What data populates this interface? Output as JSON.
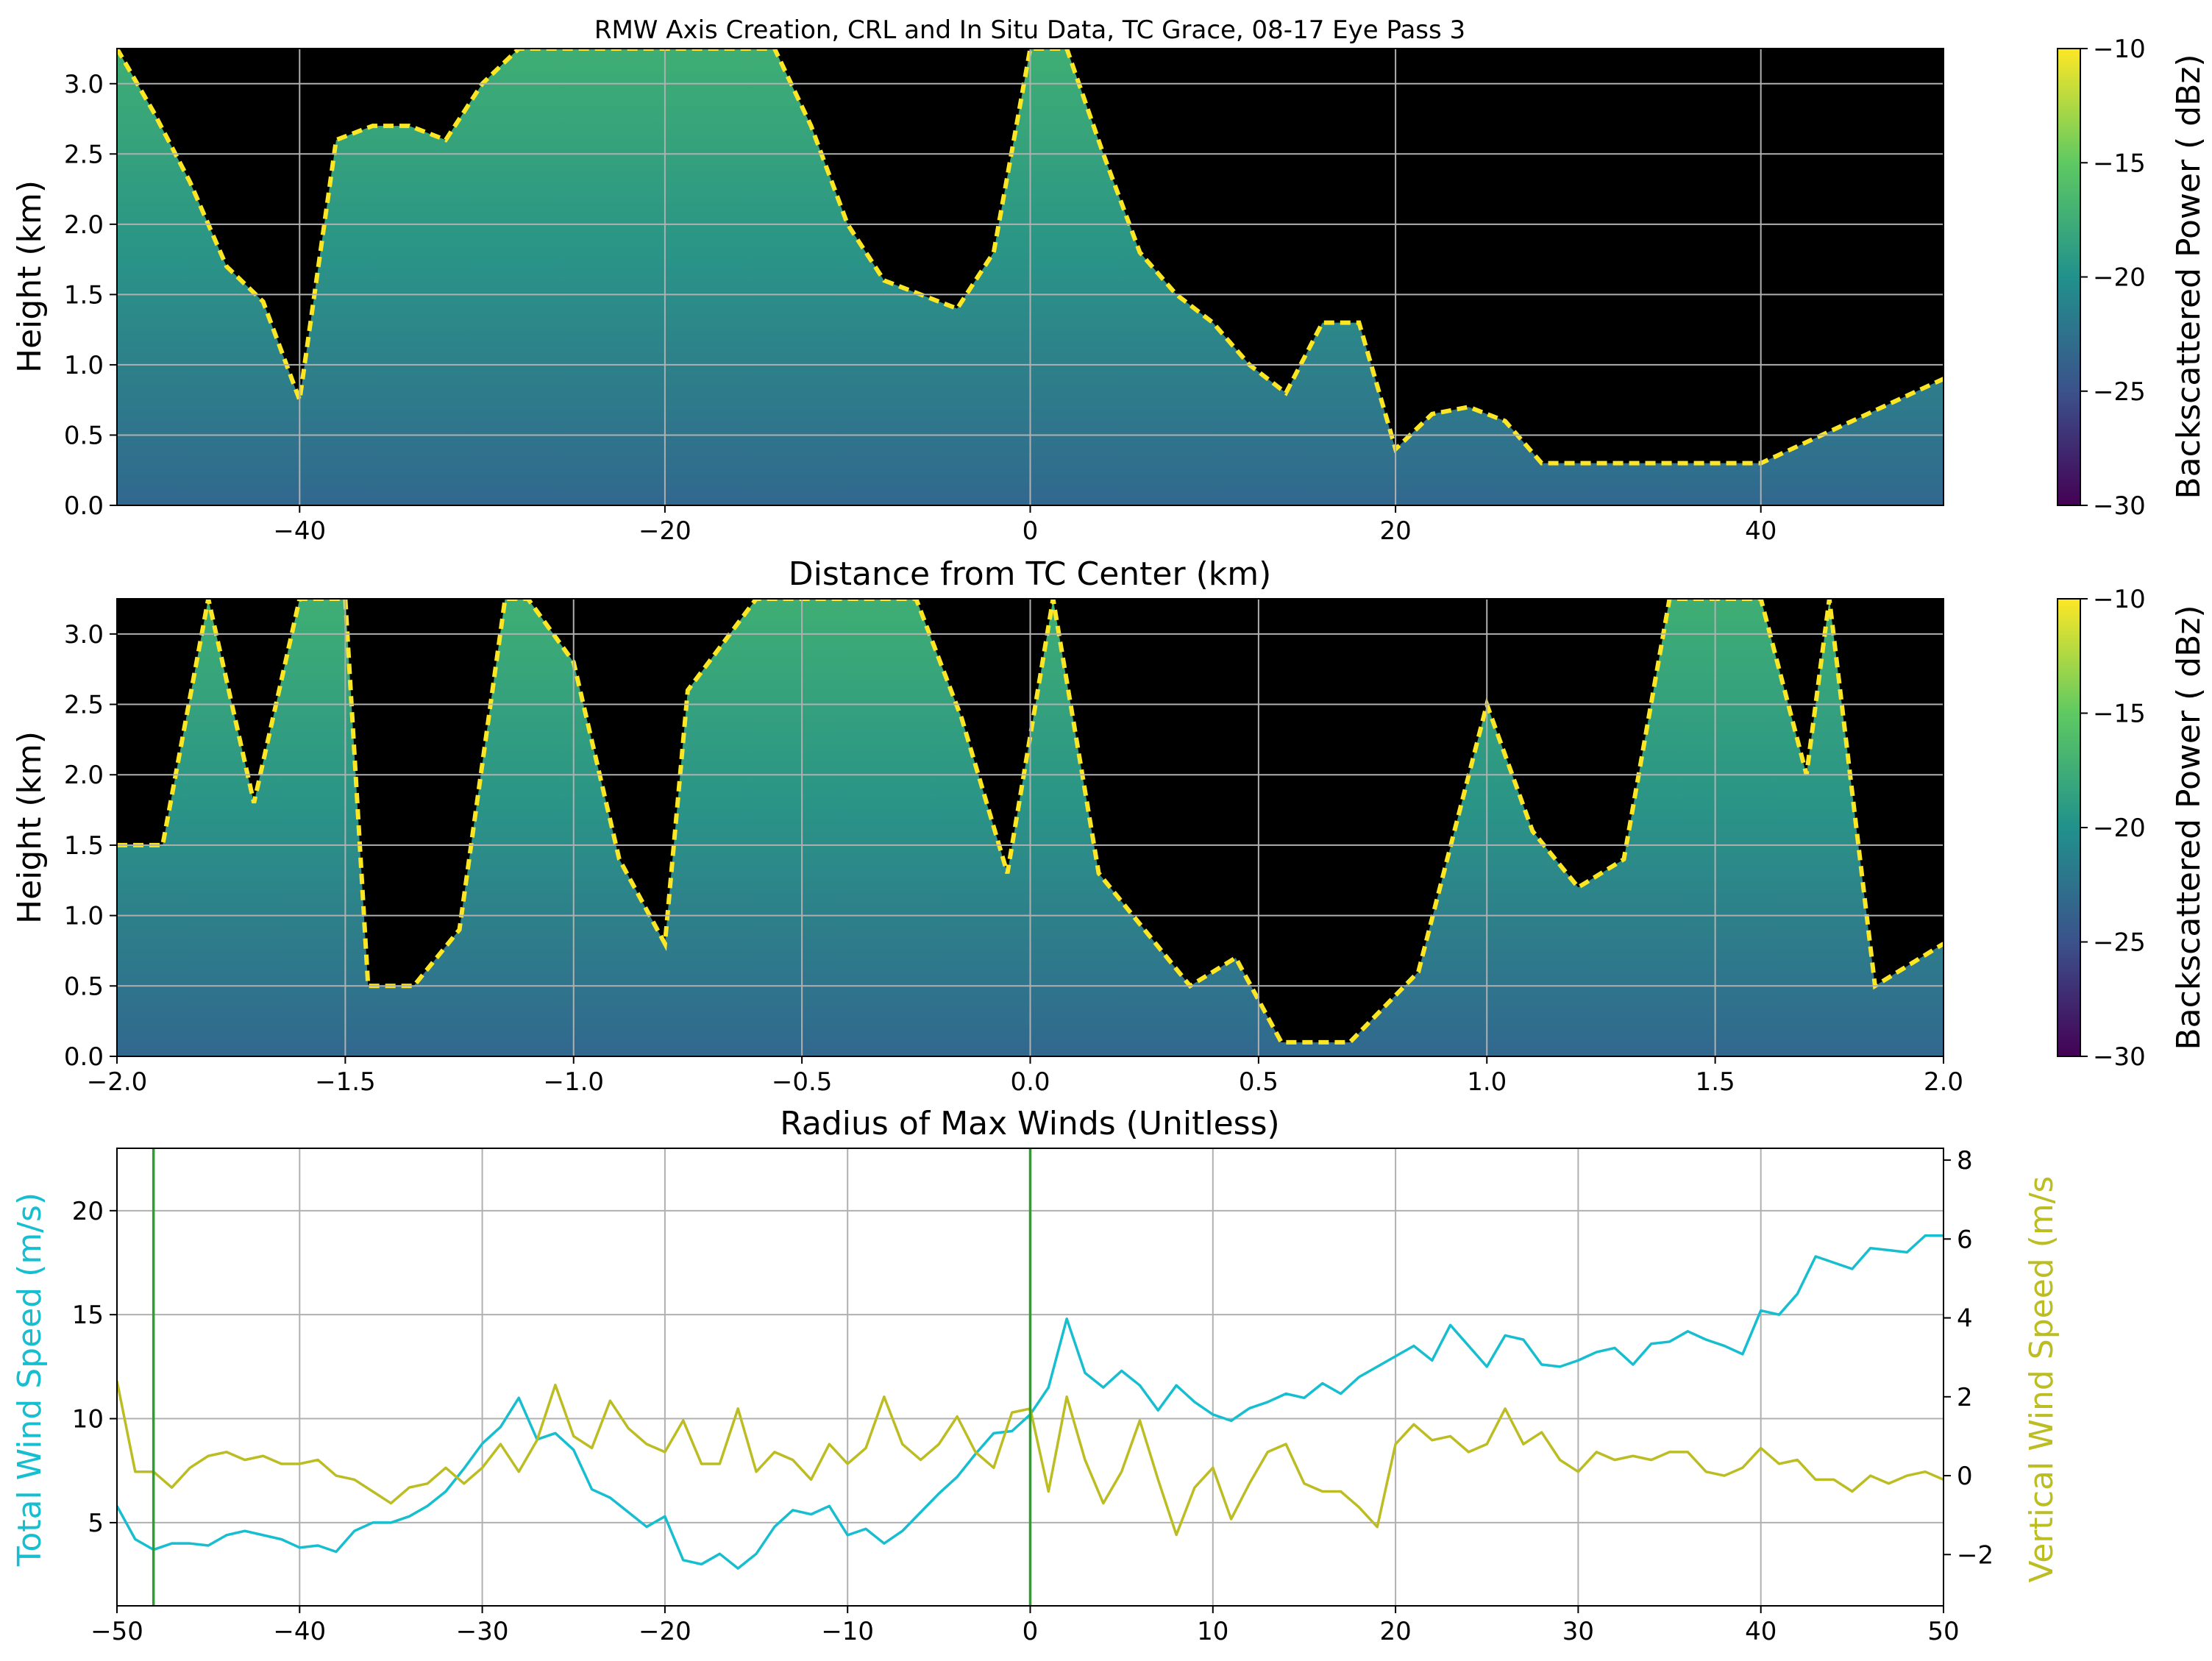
{
  "figure": {
    "title": "RMW Axis Creation, CRL and In Situ Data, TC Grace, 08-17 Eye Pass 3"
  },
  "colors": {
    "total_wind": "#17becf",
    "vertical_wind": "#bcbd22",
    "center_lines": "#2ca02c",
    "no_signal": "#000000",
    "grid": "#b0b0b0",
    "colormap": [
      "#440154",
      "#3b528b",
      "#21918c",
      "#5ec962",
      "#fde725"
    ]
  },
  "chart_data": [
    {
      "type": "heatmap",
      "panel": "top",
      "xlabel": "Distance from TC Center (km)",
      "ylabel": "Height (km)",
      "xlim": [
        -50,
        50
      ],
      "ylim": [
        0,
        3.25
      ],
      "xticks": [
        -40,
        -20,
        0,
        20,
        40
      ],
      "yticks": [
        0.0,
        0.5,
        1.0,
        1.5,
        2.0,
        2.5,
        3.0
      ],
      "grid": true,
      "colorbar": {
        "label": "Backscattered Power ( dBz)",
        "range": [
          -30,
          -10
        ],
        "ticks": [
          -30,
          -25,
          -20,
          -15,
          -10
        ]
      },
      "cloud_top_profile": {
        "x": [
          -50,
          -48,
          -46,
          -44,
          -42,
          -40,
          -38,
          -36,
          -34,
          -32,
          -30,
          -28,
          -26,
          -24,
          -22,
          -20,
          -18,
          -16,
          -14,
          -12,
          -10,
          -8,
          -6,
          -4,
          -2,
          0,
          2,
          4,
          6,
          8,
          10,
          12,
          14,
          16,
          18,
          20,
          22,
          24,
          26,
          28,
          30,
          35,
          40,
          45,
          50
        ],
        "height_km": [
          3.25,
          2.8,
          2.3,
          1.7,
          1.45,
          0.75,
          2.6,
          2.7,
          2.7,
          2.6,
          3.0,
          3.25,
          3.25,
          3.25,
          3.25,
          3.25,
          3.25,
          3.25,
          3.25,
          2.7,
          2.0,
          1.6,
          1.5,
          1.4,
          1.8,
          3.25,
          3.25,
          2.5,
          1.8,
          1.5,
          1.3,
          1.0,
          0.8,
          1.3,
          1.3,
          0.4,
          0.65,
          0.7,
          0.6,
          0.3,
          0.3,
          0.3,
          0.3,
          0.6,
          0.9
        ]
      }
    },
    {
      "type": "heatmap",
      "panel": "middle",
      "xlabel": "Radius of Max Winds (Unitless)",
      "ylabel": "Height (km)",
      "xlim": [
        -2.0,
        2.0
      ],
      "ylim": [
        0,
        3.25
      ],
      "xticks": [
        -2.0,
        -1.5,
        -1.0,
        -0.5,
        0.0,
        0.5,
        1.0,
        1.5,
        2.0
      ],
      "yticks": [
        0.0,
        0.5,
        1.0,
        1.5,
        2.0,
        2.5,
        3.0
      ],
      "grid": true,
      "colorbar": {
        "label": "Backscattered Power ( dBz)",
        "range": [
          -30,
          -10
        ],
        "ticks": [
          -30,
          -25,
          -20,
          -15,
          -10
        ]
      },
      "cloud_top_profile": {
        "x": [
          -2.0,
          -1.9,
          -1.8,
          -1.7,
          -1.6,
          -1.5,
          -1.45,
          -1.35,
          -1.25,
          -1.15,
          -1.1,
          -1.0,
          -0.9,
          -0.8,
          -0.75,
          -0.6,
          -0.4,
          -0.25,
          -0.15,
          -0.05,
          0.05,
          0.15,
          0.25,
          0.35,
          0.45,
          0.55,
          0.7,
          0.85,
          1.0,
          1.1,
          1.2,
          1.3,
          1.4,
          1.5,
          1.6,
          1.7,
          1.75,
          1.85,
          2.0
        ],
        "height_km": [
          1.5,
          1.5,
          3.25,
          1.8,
          3.25,
          3.25,
          0.5,
          0.5,
          0.9,
          3.25,
          3.25,
          2.8,
          1.4,
          0.8,
          2.6,
          3.25,
          3.25,
          3.25,
          2.4,
          1.3,
          3.25,
          1.3,
          0.9,
          0.5,
          0.7,
          0.1,
          0.1,
          0.6,
          2.5,
          1.6,
          1.2,
          1.4,
          3.25,
          3.25,
          3.25,
          2.0,
          3.25,
          0.5,
          0.8
        ]
      }
    },
    {
      "type": "line",
      "panel": "bottom",
      "x": [
        -50,
        -49,
        -48,
        -47,
        -46,
        -45,
        -44,
        -43,
        -42,
        -41,
        -40,
        -39,
        -38,
        -37,
        -36,
        -35,
        -34,
        -33,
        -32,
        -31,
        -30,
        -29,
        -28,
        -27,
        -26,
        -25,
        -24,
        -23,
        -22,
        -21,
        -20,
        -19,
        -18,
        -17,
        -16,
        -15,
        -14,
        -13,
        -12,
        -11,
        -10,
        -9,
        -8,
        -7,
        -6,
        -5,
        -4,
        -3,
        -2,
        -1,
        0,
        1,
        2,
        3,
        4,
        5,
        6,
        7,
        8,
        9,
        10,
        11,
        12,
        13,
        14,
        15,
        16,
        17,
        18,
        19,
        20,
        21,
        22,
        23,
        24,
        25,
        26,
        27,
        28,
        29,
        30,
        31,
        32,
        33,
        34,
        35,
        36,
        37,
        38,
        39,
        40,
        41,
        42,
        43,
        44,
        45,
        46,
        47,
        48,
        49,
        50
      ],
      "xlim": [
        -50,
        50
      ],
      "xticks": [
        -50,
        -40,
        -30,
        -20,
        -10,
        0,
        10,
        20,
        30,
        40,
        50
      ],
      "grid": true,
      "vlines_x": [
        -48,
        0
      ],
      "y_left": {
        "label": "Total Wind Speed (m/s)",
        "lim": [
          1.0,
          23.0
        ],
        "ticks": [
          5,
          10,
          15,
          20
        ]
      },
      "y_right": {
        "label": "Vertical Wind Speed (m/s",
        "lim": [
          -3.3,
          8.3
        ],
        "ticks": [
          -2,
          0,
          2,
          4,
          6,
          8
        ]
      },
      "series": [
        {
          "axis": "left",
          "values": [
            5.8,
            4.2,
            3.7,
            4.0,
            4.0,
            3.9,
            4.4,
            4.6,
            4.4,
            4.2,
            3.8,
            3.9,
            3.6,
            4.6,
            5.0,
            5.0,
            5.3,
            5.8,
            6.5,
            7.6,
            8.8,
            9.6,
            11.0,
            9.0,
            9.3,
            8.5,
            6.6,
            6.2,
            5.5,
            4.8,
            5.3,
            3.2,
            3.0,
            3.5,
            2.8,
            3.5,
            4.8,
            5.6,
            5.4,
            5.8,
            4.4,
            4.7,
            4.0,
            4.6,
            5.5,
            6.4,
            7.2,
            8.3,
            9.3,
            9.4,
            10.2,
            11.5,
            14.8,
            12.2,
            11.5,
            12.3,
            11.6,
            10.4,
            11.6,
            10.8,
            10.2,
            9.9,
            10.5,
            10.8,
            11.2,
            11.0,
            11.7,
            11.2,
            12.0,
            12.5,
            13.0,
            13.5,
            12.8,
            14.5,
            13.5,
            12.5,
            14.0,
            13.8,
            12.6,
            12.5,
            12.8,
            13.2,
            13.4,
            12.6,
            13.6,
            13.7,
            14.2,
            13.8,
            13.5,
            13.1,
            15.2,
            15.0,
            16.0,
            17.8,
            17.5,
            17.2,
            18.2,
            18.1,
            18.0,
            18.8,
            18.8
          ]
        },
        {
          "axis": "right",
          "values": [
            2.4,
            0.1,
            0.1,
            -0.3,
            0.2,
            0.5,
            0.6,
            0.4,
            0.5,
            0.3,
            0.3,
            0.4,
            0.0,
            -0.1,
            -0.4,
            -0.7,
            -0.3,
            -0.2,
            0.2,
            -0.2,
            0.2,
            0.8,
            0.1,
            0.9,
            2.3,
            1.0,
            0.7,
            1.9,
            1.2,
            0.8,
            0.6,
            1.4,
            0.3,
            0.3,
            1.7,
            0.1,
            0.6,
            0.4,
            -0.1,
            0.8,
            0.3,
            0.7,
            2.0,
            0.8,
            0.4,
            0.8,
            1.5,
            0.6,
            0.2,
            1.6,
            1.7,
            -0.4,
            2.0,
            0.4,
            -0.7,
            0.1,
            1.4,
            -0.1,
            -1.5,
            -0.3,
            0.2,
            -1.1,
            -0.2,
            0.6,
            0.8,
            -0.2,
            -0.4,
            -0.4,
            -0.8,
            -1.3,
            0.8,
            1.3,
            0.9,
            1.0,
            0.6,
            0.8,
            1.7,
            0.8,
            1.1,
            0.4,
            0.1,
            0.6,
            0.4,
            0.5,
            0.4,
            0.6,
            0.6,
            0.1,
            0.0,
            0.2,
            0.7,
            0.3,
            0.4,
            -0.1,
            -0.1,
            -0.4,
            0.0,
            -0.2,
            0.0,
            0.1,
            -0.1
          ]
        }
      ]
    }
  ]
}
